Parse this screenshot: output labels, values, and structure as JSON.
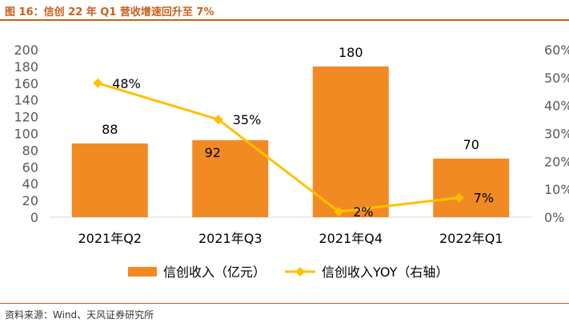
{
  "header": {
    "title": "图 16：信创 22 年 Q1 营收增速回升至 7%"
  },
  "footer": {
    "source": "资料来源：Wind、天风证券研究所"
  },
  "colors": {
    "bar": "#f28a24",
    "line": "#ffc000",
    "accent": "#c8601b"
  },
  "chart_data": {
    "type": "bar",
    "categories": [
      "2021年Q2",
      "2021年Q3",
      "2021年Q4",
      "2022年Q1"
    ],
    "series": [
      {
        "name": "信创收入（亿元）",
        "type": "bar",
        "axis": "left",
        "values": [
          88,
          92,
          180,
          70
        ],
        "labels": [
          "88",
          "92",
          "180",
          "70"
        ]
      },
      {
        "name": "信创收入YOY（右轴）",
        "type": "line",
        "axis": "right",
        "values": [
          48,
          35,
          2,
          7
        ],
        "labels": [
          "48%",
          "35%",
          "2%",
          "7%"
        ]
      }
    ],
    "y_left": {
      "min": 0,
      "max": 200,
      "step": 20,
      "ticks": [
        "0",
        "20",
        "40",
        "60",
        "80",
        "100",
        "120",
        "140",
        "160",
        "180",
        "200"
      ]
    },
    "y_right": {
      "min": 0,
      "max": 60,
      "step": 10,
      "ticks": [
        "0%",
        "10%",
        "20%",
        "30%",
        "40%",
        "50%",
        "60%"
      ]
    },
    "legend": "bottom",
    "grid": false
  }
}
